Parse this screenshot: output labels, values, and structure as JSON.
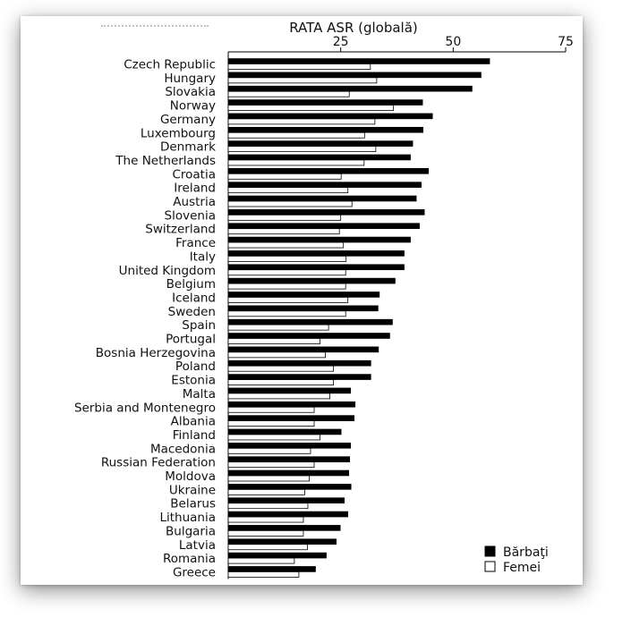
{
  "chart_data": {
    "type": "bar",
    "orientation": "horizontal",
    "title": "RATA ASR (globală)",
    "xlim": [
      0,
      75
    ],
    "x_ticks": [
      "25",
      "50",
      "75"
    ],
    "grid": false,
    "legend_position": "bottom-right",
    "categories": [
      "Czech Republic",
      "Hungary",
      "Slovakia",
      "Norway",
      "Germany",
      "Luxembourg",
      "Denmark",
      "The Netherlands",
      "Croatia",
      "Ireland",
      "Austria",
      "Slovenia",
      "Switzerland",
      "France",
      "Italy",
      "United Kingdom",
      "Belgium",
      "Iceland",
      "Sweden",
      "Spain",
      "Portugal",
      "Bosnia Herzegovina",
      "Poland",
      "Estonia",
      "Malta",
      "Serbia and Montenegro",
      "Albania",
      "Finland",
      "Macedonia",
      "Russian Federation",
      "Moldova",
      "Ukraine",
      "Belarus",
      "Lithuania",
      "Bulgaria",
      "Latvia",
      "Romania",
      "Greece"
    ],
    "series": [
      {
        "name": "Bărbaţi",
        "color": "#000000",
        "values": [
          58.1,
          56.2,
          54.2,
          43.2,
          45.4,
          43.3,
          41.0,
          40.5,
          44.5,
          42.9,
          41.8,
          43.6,
          42.5,
          40.5,
          39.1,
          39.1,
          37.1,
          33.6,
          33.3,
          36.5,
          35.9,
          33.4,
          31.7,
          31.7,
          27.2,
          28.2,
          28.0,
          25.1,
          27.2,
          27.0,
          26.8,
          27.3,
          25.8,
          26.6,
          24.9,
          24.0,
          21.8,
          19.4
        ]
      },
      {
        "name": "Femei",
        "color": "#ffffff",
        "values": [
          31.6,
          33.0,
          26.9,
          36.7,
          32.6,
          30.3,
          32.8,
          30.2,
          25.1,
          26.6,
          27.5,
          25.0,
          24.7,
          25.6,
          26.2,
          26.1,
          26.1,
          26.6,
          26.1,
          22.3,
          20.4,
          21.6,
          23.4,
          23.4,
          22.6,
          19.1,
          19.1,
          20.4,
          18.3,
          19.1,
          18.0,
          17.0,
          17.7,
          16.7,
          16.7,
          17.6,
          14.7,
          15.7
        ]
      }
    ]
  }
}
